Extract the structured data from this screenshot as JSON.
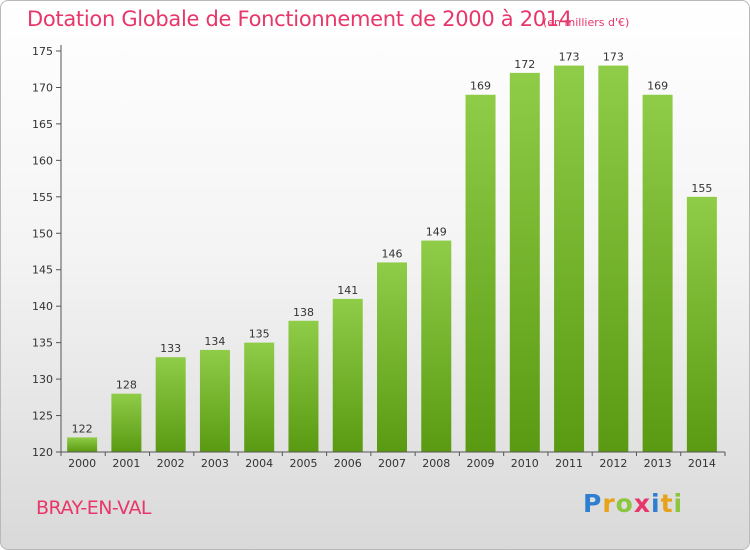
{
  "header": {
    "title": "Dotation Globale de Fonctionnement de 2000 à 2014",
    "unit": "(en milliers d'€)"
  },
  "footer": {
    "commune": "BRAY-EN-VAL",
    "logo_text": "Proxiti",
    "logo_letters": [
      {
        "ch": "P",
        "color": "#2f7fd0"
      },
      {
        "ch": "r",
        "color": "#e8a21a"
      },
      {
        "ch": "o",
        "color": "#8cc63f"
      },
      {
        "ch": "x",
        "color": "#e8366a"
      },
      {
        "ch": "i",
        "color": "#2f7fd0"
      },
      {
        "ch": "t",
        "color": "#e8a21a"
      },
      {
        "ch": "i",
        "color": "#8cc63f"
      }
    ]
  },
  "colors": {
    "bar_top": "#8fcc48",
    "bar_bottom": "#5a9a12",
    "title": "#e8366a"
  },
  "chart_data": {
    "type": "bar",
    "title": "Dotation Globale de Fonctionnement de 2000 à 2014",
    "xlabel": "",
    "ylabel": "",
    "categories": [
      "2000",
      "2001",
      "2002",
      "2003",
      "2004",
      "2005",
      "2006",
      "2007",
      "2008",
      "2009",
      "2010",
      "2011",
      "2012",
      "2013",
      "2014"
    ],
    "values": [
      122,
      128,
      133,
      134,
      135,
      138,
      141,
      146,
      149,
      169,
      172,
      173,
      173,
      169,
      155
    ],
    "ylim": [
      120,
      175
    ],
    "yticks": [
      120,
      125,
      130,
      135,
      140,
      145,
      150,
      155,
      160,
      165,
      170,
      175
    ],
    "grid": false,
    "legend": "none"
  }
}
